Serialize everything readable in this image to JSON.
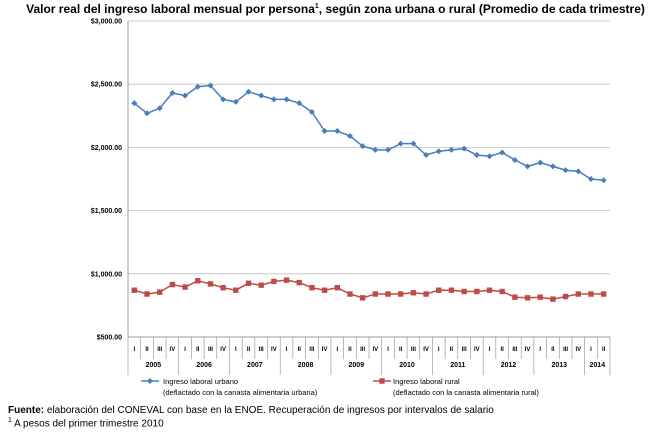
{
  "title": {
    "main": "Valor real del ingreso laboral mensual por persona",
    "sup": "1",
    "rest": ", según zona urbana o rural (Promedio de cada trimestre)"
  },
  "source": {
    "label": "Fuente:",
    "text": " elaboración del CONEVAL con base en la ENOE. Recuperación de ingresos por intervalos de salario"
  },
  "footnote": {
    "sup": "1",
    "text": " A pesos del primer trimestre 2010"
  },
  "chart_data": {
    "type": "line",
    "title": "Valor real del ingreso laboral mensual por persona, según zona urbana o rural (Promedio de cada trimestre)",
    "xlabel": "",
    "ylabel": "",
    "ylim": [
      500,
      3000
    ],
    "y_ticks": [
      "$500.00",
      "$1,000.00",
      "$1,500.00",
      "$2,000.00",
      "$2,500.00",
      "$3,000.00"
    ],
    "y_tick_values": [
      500,
      1000,
      1500,
      2000,
      2500,
      3000
    ],
    "grid": true,
    "legend_position": "bottom",
    "quarters": [
      "I",
      "II",
      "III",
      "IV",
      "I",
      "II",
      "III",
      "IV",
      "I",
      "II",
      "III",
      "IV",
      "I",
      "II",
      "III",
      "IV",
      "I",
      "II",
      "III",
      "IV",
      "I",
      "II",
      "III",
      "IV",
      "I",
      "II",
      "III",
      "IV",
      "I",
      "II",
      "III",
      "IV",
      "I",
      "II",
      "III",
      "IV",
      "I",
      "II"
    ],
    "years": [
      {
        "label": "2005",
        "count": 4
      },
      {
        "label": "2006",
        "count": 4
      },
      {
        "label": "2007",
        "count": 4
      },
      {
        "label": "2008",
        "count": 4
      },
      {
        "label": "2009",
        "count": 4
      },
      {
        "label": "2010",
        "count": 4
      },
      {
        "label": "2011",
        "count": 4
      },
      {
        "label": "2012",
        "count": 4
      },
      {
        "label": "2013",
        "count": 4
      },
      {
        "label": "2014",
        "count": 2
      }
    ],
    "series": [
      {
        "name": "Ingreso laboral urbano",
        "name2": "(deflactado con la canasta alimentaria urbana)",
        "color": "#4a7ebb",
        "marker": "diamond",
        "values": [
          2350,
          2270,
          2310,
          2430,
          2410,
          2480,
          2490,
          2380,
          2360,
          2440,
          2410,
          2380,
          2380,
          2350,
          2280,
          2130,
          2130,
          2090,
          2010,
          1980,
          1980,
          2030,
          2030,
          1940,
          1970,
          1980,
          1990,
          1940,
          1930,
          1960,
          1900,
          1850,
          1880,
          1850,
          1820,
          1810,
          1750,
          1740
        ]
      },
      {
        "name": "Ingreso laboral rural",
        "name2": "(deflactado con la canasta alimentaria rural)",
        "color": "#be4b48",
        "marker": "square",
        "values": [
          870,
          840,
          855,
          915,
          895,
          945,
          920,
          890,
          870,
          925,
          910,
          940,
          950,
          930,
          890,
          870,
          890,
          840,
          810,
          840,
          840,
          840,
          850,
          840,
          870,
          870,
          860,
          860,
          870,
          860,
          815,
          810,
          815,
          800,
          820,
          840,
          840,
          840
        ]
      }
    ]
  }
}
